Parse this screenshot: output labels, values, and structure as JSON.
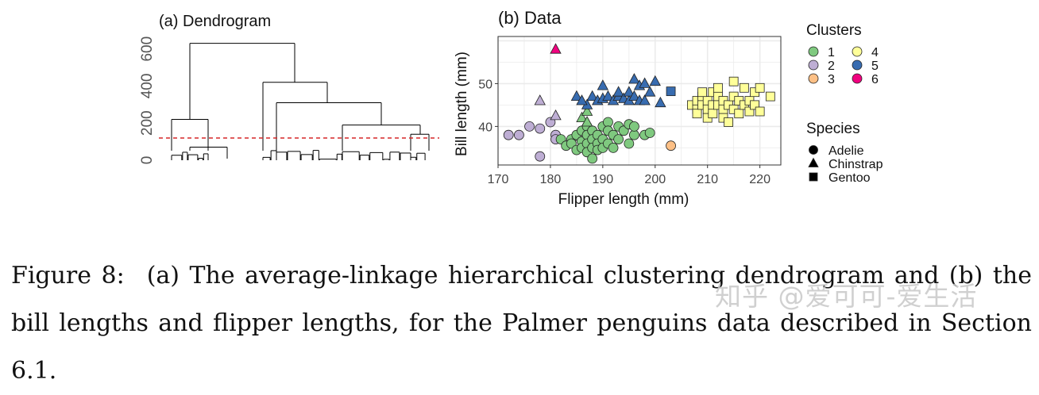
{
  "panel_a": {
    "title": "(a) Dendrogram",
    "y_ticks": [
      "0",
      "200",
      "400",
      "600"
    ]
  },
  "panel_b": {
    "title": "(b) Data",
    "legend_clusters_title": "Clusters",
    "legend_species_title": "Species"
  },
  "caption": {
    "label": "Figure 8:",
    "text": "(a) The average-linkage hierarchical clustering dendrogram and (b) the bill lengths and flipper lengths, for the Palmer penguins data described in Section 6.1."
  },
  "watermark": "知乎 @爱可可-爱生活",
  "colors": {
    "cluster_1": "#7fc97f",
    "cluster_2": "#beaed4",
    "cluster_3": "#fdc086",
    "cluster_4": "#ffff99",
    "cluster_5": "#386cb0",
    "cluster_6": "#f0027f",
    "cut_line": "#d62728"
  },
  "chart_data": [
    {
      "type": "dendrogram",
      "title": "(a) Dendrogram",
      "yticks": [
        0,
        200,
        400,
        600
      ],
      "ylim": [
        0,
        650
      ],
      "cut_height": 120,
      "merges": [
        {
          "h": 630,
          "children": [
            "A",
            "B"
          ]
        },
        {
          "h": 220,
          "children": [
            "A1",
            "A2"
          ],
          "name": "A"
        },
        {
          "h": 420,
          "children": [
            "B1",
            "B2"
          ],
          "name": "B"
        },
        {
          "h": 310,
          "children": [
            "B2a",
            "B2b"
          ],
          "name": "B2"
        },
        {
          "h": 190,
          "children": [
            "B2b1",
            "B2b2"
          ],
          "name": "B2b"
        },
        {
          "h": 140,
          "children": [
            "B2b2a",
            "B2b2b"
          ],
          "name": "B2b2"
        }
      ]
    },
    {
      "type": "scatter",
      "title": "(b) Data",
      "xlabel": "Flipper length (mm)",
      "ylabel": "Bill length (mm)",
      "xlim": [
        170,
        224
      ],
      "ylim": [
        31,
        61
      ],
      "xticks": [
        170,
        180,
        190,
        200,
        210,
        220
      ],
      "yticks": [
        40,
        50
      ],
      "grid": true,
      "legend_placement": "right",
      "clusters": [
        "1",
        "2",
        "3",
        "4",
        "5",
        "6"
      ],
      "species": [
        {
          "name": "Adelie",
          "shape": "circle"
        },
        {
          "name": "Chinstrap",
          "shape": "triangle"
        },
        {
          "name": "Gentoo",
          "shape": "square"
        }
      ],
      "points": [
        {
          "x": 181,
          "y": 58,
          "c": 6,
          "s": "triangle"
        },
        {
          "x": 203,
          "y": 35.5,
          "c": 3,
          "s": "circle"
        },
        {
          "x": 172,
          "y": 38,
          "c": 2,
          "s": "circle"
        },
        {
          "x": 174,
          "y": 38,
          "c": 2,
          "s": "circle"
        },
        {
          "x": 176,
          "y": 40,
          "c": 2,
          "s": "circle"
        },
        {
          "x": 178,
          "y": 39.5,
          "c": 2,
          "s": "circle"
        },
        {
          "x": 178,
          "y": 33,
          "c": 2,
          "s": "circle"
        },
        {
          "x": 180,
          "y": 41,
          "c": 2,
          "s": "circle"
        },
        {
          "x": 181,
          "y": 38,
          "c": 2,
          "s": "circle"
        },
        {
          "x": 181,
          "y": 37,
          "c": 2,
          "s": "circle"
        },
        {
          "x": 178,
          "y": 46,
          "c": 2,
          "s": "triangle"
        },
        {
          "x": 181,
          "y": 42.5,
          "c": 2,
          "s": "triangle"
        },
        {
          "x": 182,
          "y": 37,
          "c": 1,
          "s": "circle"
        },
        {
          "x": 183,
          "y": 35.5,
          "c": 1,
          "s": "circle"
        },
        {
          "x": 184,
          "y": 37,
          "c": 1,
          "s": "circle"
        },
        {
          "x": 184,
          "y": 36,
          "c": 1,
          "s": "circle"
        },
        {
          "x": 185,
          "y": 38,
          "c": 1,
          "s": "circle"
        },
        {
          "x": 185,
          "y": 34.5,
          "c": 1,
          "s": "circle"
        },
        {
          "x": 186,
          "y": 39,
          "c": 1,
          "s": "circle"
        },
        {
          "x": 186,
          "y": 36.5,
          "c": 1,
          "s": "circle"
        },
        {
          "x": 186,
          "y": 35,
          "c": 1,
          "s": "circle"
        },
        {
          "x": 187,
          "y": 40,
          "c": 1,
          "s": "circle"
        },
        {
          "x": 187,
          "y": 38,
          "c": 1,
          "s": "circle"
        },
        {
          "x": 187,
          "y": 36,
          "c": 1,
          "s": "circle"
        },
        {
          "x": 187,
          "y": 34,
          "c": 1,
          "s": "circle"
        },
        {
          "x": 188,
          "y": 39,
          "c": 1,
          "s": "circle"
        },
        {
          "x": 188,
          "y": 37,
          "c": 1,
          "s": "circle"
        },
        {
          "x": 188,
          "y": 35,
          "c": 1,
          "s": "circle"
        },
        {
          "x": 188,
          "y": 32.5,
          "c": 1,
          "s": "circle"
        },
        {
          "x": 189,
          "y": 38,
          "c": 1,
          "s": "circle"
        },
        {
          "x": 189,
          "y": 36,
          "c": 1,
          "s": "circle"
        },
        {
          "x": 189,
          "y": 34.5,
          "c": 1,
          "s": "circle"
        },
        {
          "x": 190,
          "y": 40,
          "c": 1,
          "s": "circle"
        },
        {
          "x": 190,
          "y": 37,
          "c": 1,
          "s": "circle"
        },
        {
          "x": 190,
          "y": 35,
          "c": 1,
          "s": "circle"
        },
        {
          "x": 191,
          "y": 41,
          "c": 1,
          "s": "circle"
        },
        {
          "x": 191,
          "y": 39,
          "c": 1,
          "s": "circle"
        },
        {
          "x": 191,
          "y": 36,
          "c": 1,
          "s": "circle"
        },
        {
          "x": 192,
          "y": 38,
          "c": 1,
          "s": "circle"
        },
        {
          "x": 192,
          "y": 35,
          "c": 1,
          "s": "circle"
        },
        {
          "x": 193,
          "y": 40,
          "c": 1,
          "s": "circle"
        },
        {
          "x": 193,
          "y": 37,
          "c": 1,
          "s": "circle"
        },
        {
          "x": 194,
          "y": 39,
          "c": 1,
          "s": "circle"
        },
        {
          "x": 195,
          "y": 40.5,
          "c": 1,
          "s": "circle"
        },
        {
          "x": 195,
          "y": 36,
          "c": 1,
          "s": "circle"
        },
        {
          "x": 196,
          "y": 38,
          "c": 1,
          "s": "circle"
        },
        {
          "x": 196,
          "y": 40,
          "c": 1,
          "s": "circle"
        },
        {
          "x": 198,
          "y": 38,
          "c": 1,
          "s": "circle"
        },
        {
          "x": 199,
          "y": 38.5,
          "c": 1,
          "s": "circle"
        },
        {
          "x": 186,
          "y": 42,
          "c": 1,
          "s": "triangle"
        },
        {
          "x": 187,
          "y": 43.5,
          "c": 1,
          "s": "triangle"
        },
        {
          "x": 187,
          "y": 41,
          "c": 1,
          "s": "triangle"
        },
        {
          "x": 187,
          "y": 45,
          "c": 5,
          "s": "triangle"
        },
        {
          "x": 185,
          "y": 47,
          "c": 5,
          "s": "triangle"
        },
        {
          "x": 186,
          "y": 46,
          "c": 5,
          "s": "triangle"
        },
        {
          "x": 188,
          "y": 47,
          "c": 5,
          "s": "triangle"
        },
        {
          "x": 189,
          "y": 46,
          "c": 5,
          "s": "triangle"
        },
        {
          "x": 190,
          "y": 49.5,
          "c": 5,
          "s": "triangle"
        },
        {
          "x": 190,
          "y": 46.5,
          "c": 5,
          "s": "triangle"
        },
        {
          "x": 191,
          "y": 47,
          "c": 5,
          "s": "triangle"
        },
        {
          "x": 192,
          "y": 46,
          "c": 5,
          "s": "triangle"
        },
        {
          "x": 193,
          "y": 47,
          "c": 5,
          "s": "triangle"
        },
        {
          "x": 193,
          "y": 48,
          "c": 5,
          "s": "triangle"
        },
        {
          "x": 194,
          "y": 46.5,
          "c": 5,
          "s": "triangle"
        },
        {
          "x": 195,
          "y": 46,
          "c": 5,
          "s": "triangle"
        },
        {
          "x": 195,
          "y": 48,
          "c": 5,
          "s": "triangle"
        },
        {
          "x": 196,
          "y": 47,
          "c": 5,
          "s": "triangle"
        },
        {
          "x": 196,
          "y": 51,
          "c": 5,
          "s": "triangle"
        },
        {
          "x": 197,
          "y": 49.5,
          "c": 5,
          "s": "triangle"
        },
        {
          "x": 197,
          "y": 46,
          "c": 5,
          "s": "triangle"
        },
        {
          "x": 198,
          "y": 50,
          "c": 5,
          "s": "triangle"
        },
        {
          "x": 198,
          "y": 46,
          "c": 5,
          "s": "triangle"
        },
        {
          "x": 199,
          "y": 48,
          "c": 5,
          "s": "triangle"
        },
        {
          "x": 200,
          "y": 50.5,
          "c": 5,
          "s": "triangle"
        },
        {
          "x": 201,
          "y": 45.5,
          "c": 5,
          "s": "triangle"
        },
        {
          "x": 203,
          "y": 48.2,
          "c": 5,
          "s": "square"
        },
        {
          "x": 207,
          "y": 45,
          "c": 4,
          "s": "square"
        },
        {
          "x": 208,
          "y": 46,
          "c": 4,
          "s": "square"
        },
        {
          "x": 208,
          "y": 44,
          "c": 4,
          "s": "square"
        },
        {
          "x": 208,
          "y": 43,
          "c": 4,
          "s": "square"
        },
        {
          "x": 209,
          "y": 47,
          "c": 4,
          "s": "square"
        },
        {
          "x": 209,
          "y": 45,
          "c": 4,
          "s": "square"
        },
        {
          "x": 210,
          "y": 46,
          "c": 4,
          "s": "square"
        },
        {
          "x": 210,
          "y": 44,
          "c": 4,
          "s": "square"
        },
        {
          "x": 210,
          "y": 42,
          "c": 4,
          "s": "square"
        },
        {
          "x": 211,
          "y": 48,
          "c": 4,
          "s": "square"
        },
        {
          "x": 211,
          "y": 45,
          "c": 4,
          "s": "square"
        },
        {
          "x": 211,
          "y": 43,
          "c": 4,
          "s": "square"
        },
        {
          "x": 212,
          "y": 47,
          "c": 4,
          "s": "square"
        },
        {
          "x": 212,
          "y": 45,
          "c": 4,
          "s": "square"
        },
        {
          "x": 213,
          "y": 46,
          "c": 4,
          "s": "square"
        },
        {
          "x": 213,
          "y": 44,
          "c": 4,
          "s": "square"
        },
        {
          "x": 213,
          "y": 42,
          "c": 4,
          "s": "square"
        },
        {
          "x": 214,
          "y": 45,
          "c": 4,
          "s": "square"
        },
        {
          "x": 214,
          "y": 41,
          "c": 4,
          "s": "square"
        },
        {
          "x": 215,
          "y": 47,
          "c": 4,
          "s": "square"
        },
        {
          "x": 215,
          "y": 44,
          "c": 4,
          "s": "square"
        },
        {
          "x": 215,
          "y": 50.5,
          "c": 4,
          "s": "square"
        },
        {
          "x": 216,
          "y": 46,
          "c": 4,
          "s": "square"
        },
        {
          "x": 216,
          "y": 43,
          "c": 4,
          "s": "square"
        },
        {
          "x": 217,
          "y": 49,
          "c": 4,
          "s": "square"
        },
        {
          "x": 217,
          "y": 45,
          "c": 4,
          "s": "square"
        },
        {
          "x": 218,
          "y": 46,
          "c": 4,
          "s": "square"
        },
        {
          "x": 218,
          "y": 43.5,
          "c": 4,
          "s": "square"
        },
        {
          "x": 219,
          "y": 48,
          "c": 4,
          "s": "square"
        },
        {
          "x": 219,
          "y": 45,
          "c": 4,
          "s": "square"
        },
        {
          "x": 220,
          "y": 49,
          "c": 4,
          "s": "square"
        },
        {
          "x": 220,
          "y": 43.5,
          "c": 4,
          "s": "square"
        },
        {
          "x": 222,
          "y": 47,
          "c": 4,
          "s": "square"
        },
        {
          "x": 212,
          "y": 49,
          "c": 4,
          "s": "square"
        },
        {
          "x": 209,
          "y": 48,
          "c": 4,
          "s": "square"
        }
      ]
    }
  ]
}
